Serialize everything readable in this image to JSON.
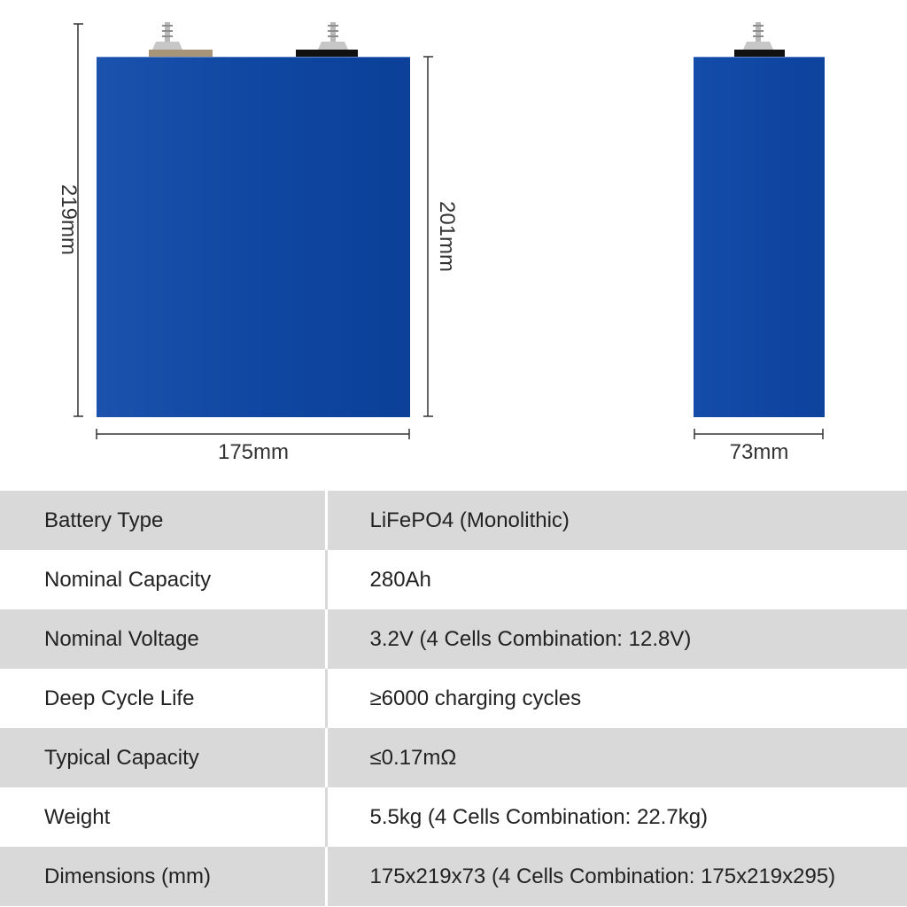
{
  "diagram": {
    "front_view": {
      "height_total_label": "219mm",
      "height_body_label": "201mm",
      "width_label": "175mm"
    },
    "side_view": {
      "depth_label": "73mm"
    },
    "colors": {
      "cell_body": "#0f47a2",
      "cell_highlight": "#2a5fb8",
      "terminal_metal": "#b9b9b9",
      "terminal_base_positive": "#a89478",
      "terminal_base_negative": "#111111",
      "dimension_line": "#333333"
    }
  },
  "spec_table": {
    "rows": [
      {
        "label": "Battery Type",
        "value": "LiFePO4 (Monolithic)"
      },
      {
        "label": "Nominal Capacity",
        "value": "280Ah"
      },
      {
        "label": "Nominal Voltage",
        "value": "3.2V (4 Cells Combination: 12.8V)"
      },
      {
        "label": "Deep Cycle Life",
        "value": "≥6000 charging cycles"
      },
      {
        "label": "Typical Capacity",
        "value": "≤0.17mΩ"
      },
      {
        "label": "Weight",
        "value": "5.5kg (4 Cells Combination: 22.7kg)"
      },
      {
        "label": "Dimensions (mm)",
        "value": "175x219x73 (4 Cells Combination: 175x219x295)"
      }
    ],
    "colors": {
      "shaded_row": "#d9d9d9",
      "plain_row": "#ffffff"
    }
  }
}
